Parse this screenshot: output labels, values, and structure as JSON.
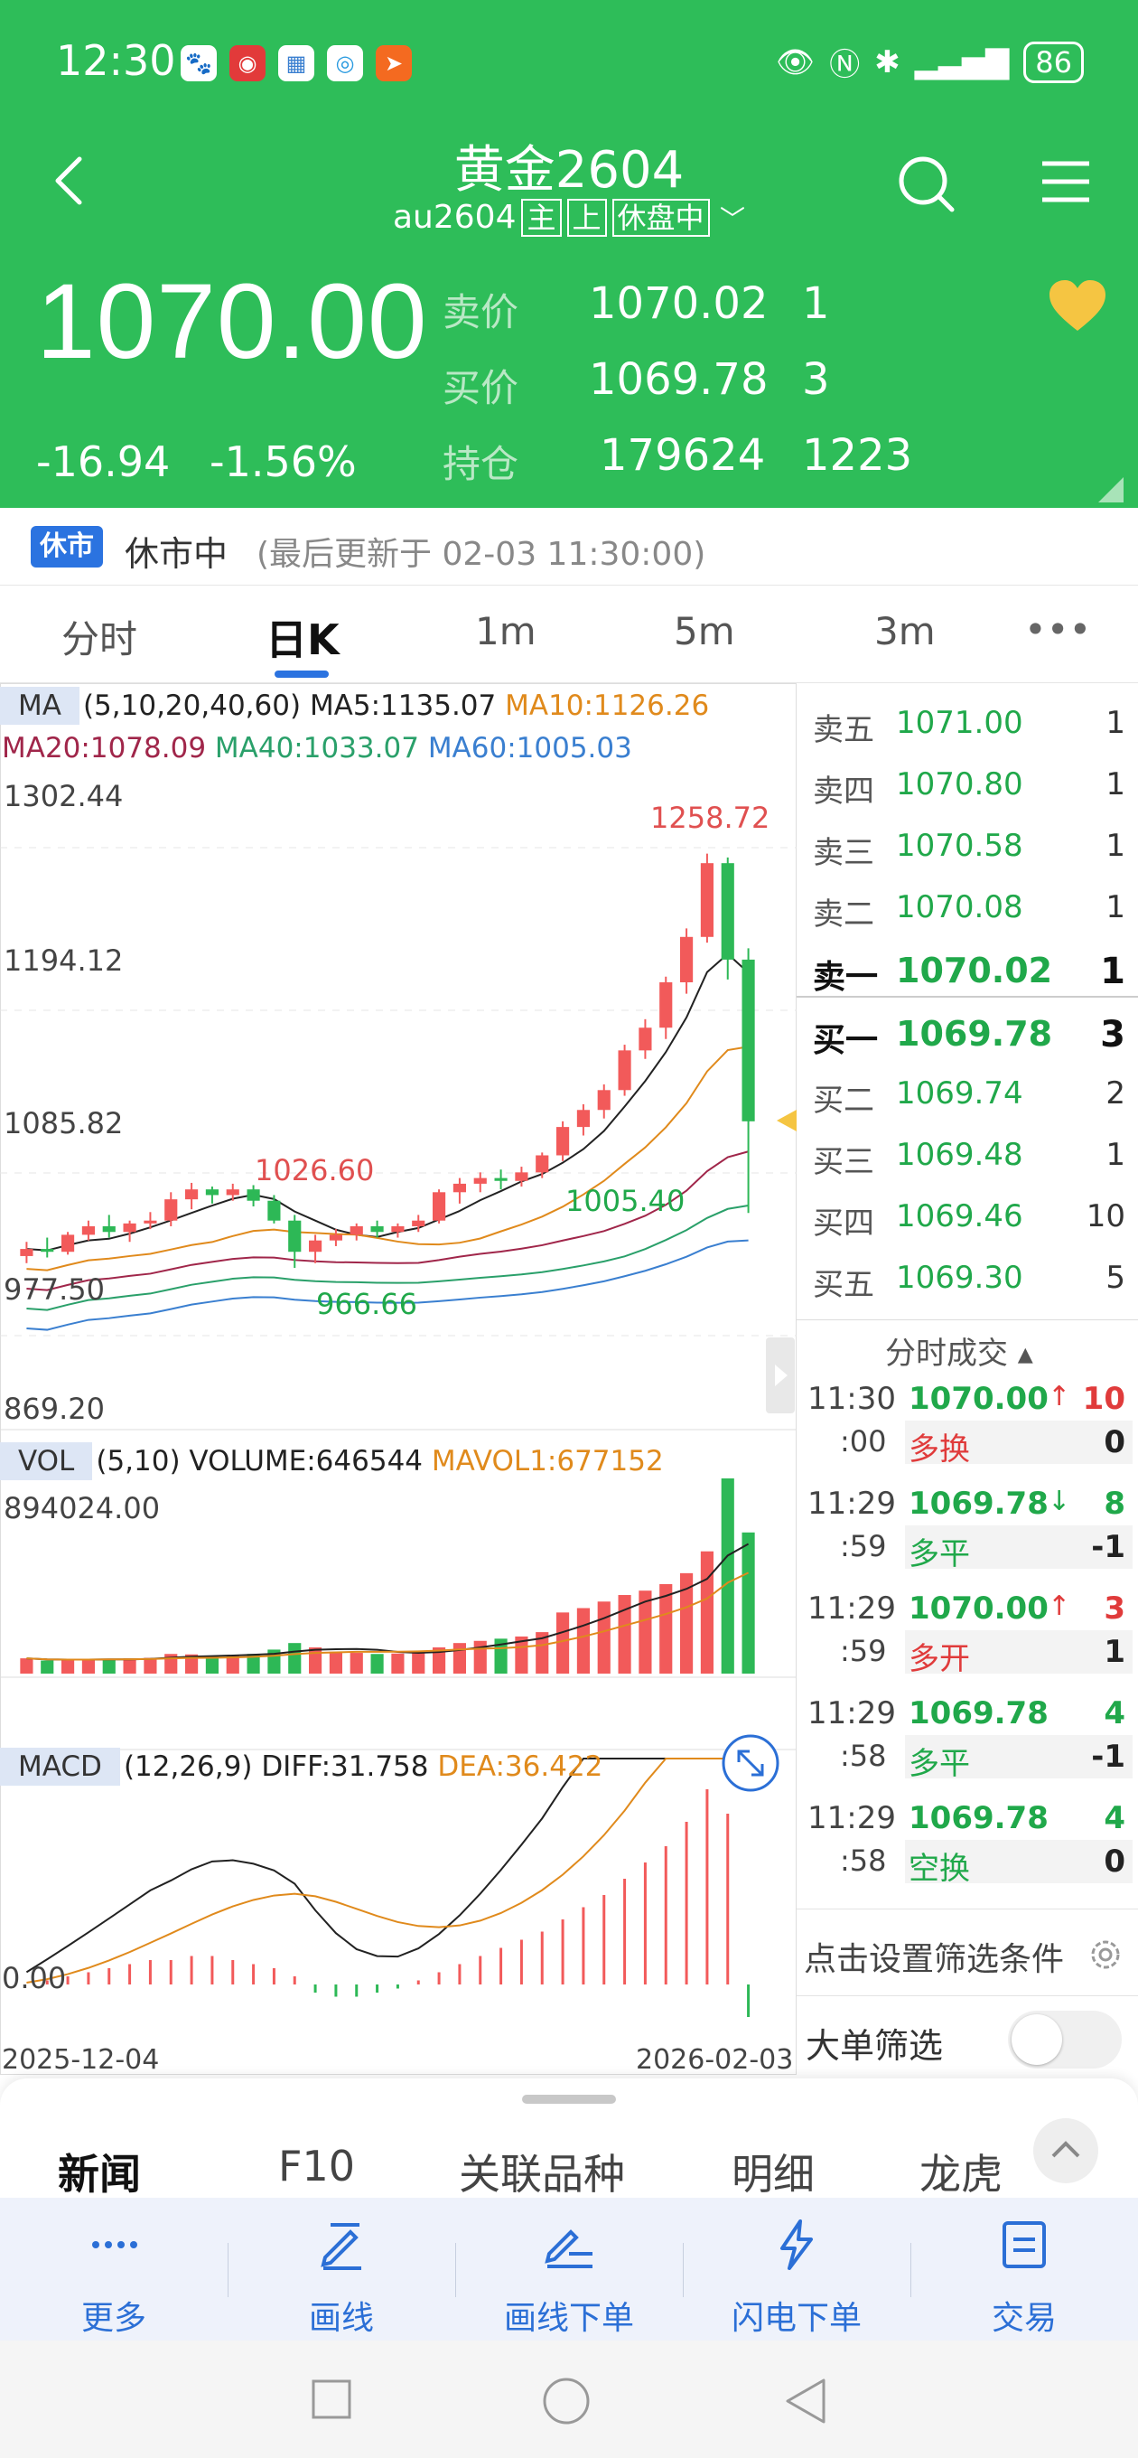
{
  "status_bar": {
    "time": "12:30",
    "battery": "86"
  },
  "header": {
    "title": "黄金2604",
    "symbol": "au2604",
    "tags": [
      "主",
      "上",
      "休盘中"
    ]
  },
  "quote": {
    "last": "1070.00",
    "change": "-16.94",
    "change_pct": "-1.56%",
    "ask_label": "卖价",
    "ask": "1070.02",
    "ask_vol": "1",
    "bid_label": "买价",
    "bid": "1069.78",
    "bid_vol": "3",
    "oi_label": "持仓",
    "oi": "179624",
    "oi_chg": "1223"
  },
  "market_status": {
    "badge": "休市",
    "text": "休市中",
    "last_update": "(最后更新于 02-03 11:30:00)"
  },
  "period_tabs": [
    "分时",
    "日K",
    "1m",
    "5m",
    "3m",
    "•••"
  ],
  "indicators": {
    "ma": {
      "name": "MA",
      "params": "(5,10,20,40,60)",
      "ma5": "MA5:1135.07",
      "ma10": "MA10:1126.26",
      "ma20": "MA20:1078.09",
      "ma40": "MA40:1033.07",
      "ma60": "MA60:1005.03"
    },
    "vol": {
      "name": "VOL",
      "params": "(5,10)",
      "volume": "VOLUME:646544",
      "mavol": "MAVOL1:677152"
    },
    "macd": {
      "name": "MACD",
      "params": "(12,26,9)",
      "diff": "DIFF:31.758",
      "dea": "DEA:36.422"
    }
  },
  "price_axis": [
    "1302.44",
    "1194.12",
    "1085.82",
    "977.50",
    "869.20"
  ],
  "annotations": {
    "high": "1258.72",
    "mid_high": "1026.60",
    "low": "966.66",
    "last_low": "1005.40"
  },
  "vol_axis_max": "894024.00",
  "macd_axis_zero": "0.00",
  "date_start": "2025-12-04",
  "date_end": "2026-02-03",
  "colors": {
    "up": "#f25a5a",
    "down": "#2db856",
    "ma5": "#222222",
    "ma10": "#e08a1c",
    "ma20": "#a0264a",
    "ma40": "#2aa06a",
    "ma60": "#3a7fd0"
  },
  "chart_data": {
    "type": "candlestick",
    "x_range": [
      "2025-12-04",
      "2026-02-03"
    ],
    "y_range": [
      869.2,
      1302.44
    ],
    "candles": [
      [
        975,
        985,
        970,
        980
      ],
      [
        980,
        988,
        974,
        978
      ],
      [
        978,
        992,
        976,
        990
      ],
      [
        990,
        1000,
        986,
        996
      ],
      [
        996,
        1004,
        988,
        992
      ],
      [
        992,
        1000,
        985,
        998
      ],
      [
        998,
        1006,
        994,
        1000
      ],
      [
        1000,
        1020,
        996,
        1015
      ],
      [
        1015,
        1026.6,
        1008,
        1022
      ],
      [
        1022,
        1024,
        1012,
        1018
      ],
      [
        1018,
        1026,
        1014,
        1022
      ],
      [
        1022,
        1025,
        1010,
        1014
      ],
      [
        1014,
        1018,
        998,
        1000
      ],
      [
        1000,
        1004,
        966.66,
        978
      ],
      [
        978,
        990,
        970,
        986
      ],
      [
        986,
        994,
        982,
        990
      ],
      [
        990,
        998,
        986,
        996
      ],
      [
        996,
        1000,
        988,
        992
      ],
      [
        992,
        998,
        988,
        996
      ],
      [
        996,
        1004,
        992,
        1000
      ],
      [
        1000,
        1022,
        998,
        1020
      ],
      [
        1020,
        1030,
        1012,
        1026
      ],
      [
        1026,
        1034,
        1020,
        1030
      ],
      [
        1030,
        1036,
        1022,
        1028
      ],
      [
        1028,
        1038,
        1024,
        1034
      ],
      [
        1034,
        1048,
        1030,
        1046
      ],
      [
        1046,
        1070,
        1042,
        1066
      ],
      [
        1066,
        1082,
        1060,
        1078
      ],
      [
        1078,
        1096,
        1072,
        1092
      ],
      [
        1092,
        1124,
        1088,
        1120
      ],
      [
        1120,
        1142,
        1114,
        1136
      ],
      [
        1136,
        1172,
        1128,
        1168
      ],
      [
        1168,
        1206,
        1160,
        1200
      ],
      [
        1200,
        1258.72,
        1196,
        1252
      ],
      [
        1252,
        1256,
        1170,
        1184
      ],
      [
        1184,
        1192,
        1005.4,
        1070
      ]
    ],
    "volume_max": 894024,
    "volumes": [
      70000,
      60000,
      62000,
      65000,
      68000,
      70000,
      72000,
      90000,
      88000,
      80000,
      85000,
      90000,
      110000,
      140000,
      120000,
      100000,
      95000,
      90000,
      92000,
      98000,
      120000,
      140000,
      150000,
      160000,
      170000,
      190000,
      280000,
      300000,
      330000,
      360000,
      380000,
      410000,
      460000,
      560000,
      894024,
      646544
    ],
    "macd_hist": [
      0,
      1,
      2,
      3,
      4,
      5,
      6,
      6,
      7,
      7,
      6,
      5,
      4,
      2,
      -2,
      -3,
      -3,
      -2,
      -1,
      1,
      3,
      5,
      7,
      9,
      11,
      13,
      16,
      19,
      22,
      26,
      30,
      34,
      40,
      48,
      42,
      -8
    ]
  }
}
